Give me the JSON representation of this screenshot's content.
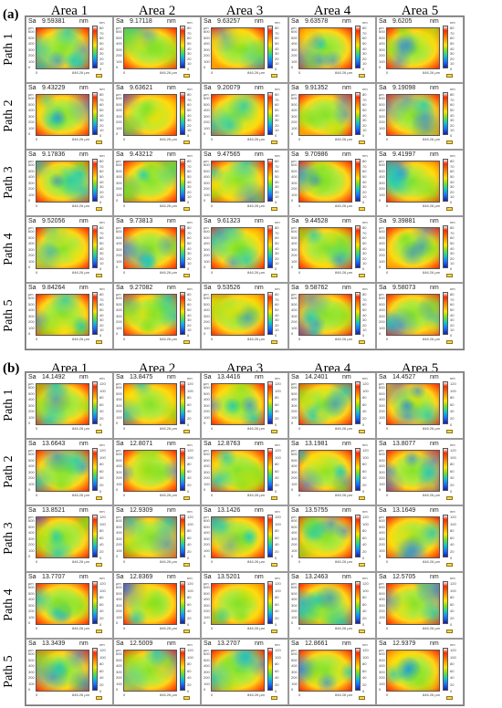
{
  "panels": [
    {
      "label": "(a)",
      "areas": [
        "Area 1",
        "Area 2",
        "Area 3",
        "Area 4",
        "Area 5"
      ],
      "paths": [
        "Path 1",
        "Path 2",
        "Path 3",
        "Path 4",
        "Path 5"
      ],
      "sa_label": "Sa",
      "unit": "nm",
      "axis_unit": "µm",
      "x_extent_label": "846.26 µm",
      "colorbar_ticks": [
        "80",
        "70",
        "60",
        "50",
        "40",
        "30",
        "20",
        "10",
        "0"
      ],
      "y_ticks": [
        "600",
        "500",
        "400",
        "300",
        "200",
        "100",
        "0"
      ],
      "values": [
        [
          "9.59381",
          "9.17118",
          "9.63257",
          "9.63578",
          "9.6205"
        ],
        [
          "9.43229",
          "9.63621",
          "9.20079",
          "9.91352",
          "9.19098"
        ],
        [
          "9.17836",
          "9.43212",
          "9.47565",
          "9.70986",
          "9.41997"
        ],
        [
          "9.52056",
          "9.73813",
          "9.61323",
          "9.44528",
          "9.39881"
        ],
        [
          "9.84264",
          "9.27082",
          "9.53526",
          "9.58762",
          "9.58073"
        ]
      ]
    },
    {
      "label": "(b)",
      "areas": [
        "Area 1",
        "Area 2",
        "Area 3",
        "Area 4",
        "Area 5"
      ],
      "paths": [
        "Path 1",
        "Path 2",
        "Path 3",
        "Path 4",
        "Path 5"
      ],
      "sa_label": "Sa",
      "unit": "nm",
      "axis_unit": "µm",
      "x_extent_label": "846.26 µm",
      "colorbar_ticks": [
        "120",
        "100",
        "80",
        "60",
        "40",
        "20",
        "0"
      ],
      "y_ticks": [
        "600",
        "500",
        "400",
        "300",
        "200",
        "100",
        "0"
      ],
      "values": [
        [
          "14.1492",
          "13.8475",
          "13.4416",
          "14.2401",
          "14.4527"
        ],
        [
          "13.6643",
          "12.8071",
          "12.8763",
          "13.1981",
          "13.8077"
        ],
        [
          "13.8521",
          "12.9309",
          "13.1426",
          "13.5755",
          "13.1649"
        ],
        [
          "13.7707",
          "12.8369",
          "13.5201",
          "13.2463",
          "12.5705"
        ],
        [
          "13.3439",
          "12.5009",
          "13.2707",
          "12.8661",
          "12.9379"
        ]
      ]
    }
  ],
  "colors": {
    "high": "#ff2a00",
    "mid_high": "#ff8800",
    "mid": "#ffe000",
    "mid_low": "#7ee01f",
    "low": "#14c9c0",
    "lower": "#1a73ff",
    "lowest": "#1020b0"
  }
}
